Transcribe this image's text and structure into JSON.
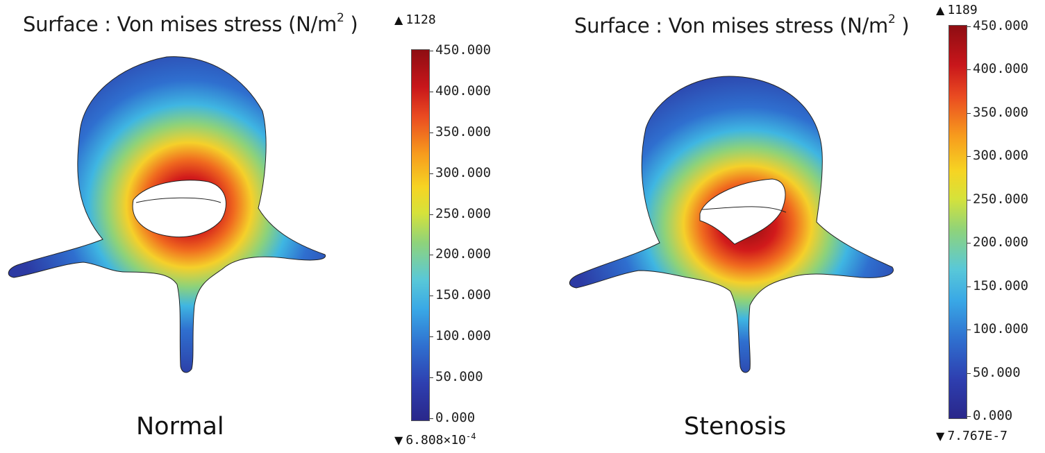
{
  "panels": [
    {
      "title_prefix": "Surface : Von mises stress (N/m",
      "title_sup": "2",
      "title_suffix": " )",
      "label": "Normal",
      "max_value": "1128",
      "min_value": "6.808×10",
      "min_exp": "-4",
      "ticks": [
        "450.000",
        "400.000",
        "350.000",
        "300.000",
        "250.000",
        "200.000",
        "150.000",
        "100.000",
        "50.000",
        "0.000"
      ]
    },
    {
      "title_prefix": "Surface : Von mises stress (N/m",
      "title_sup": "2",
      "title_suffix": " )",
      "label": "Stenosis",
      "max_value": "1189",
      "min_value": "7.767E-7",
      "min_exp": "",
      "ticks": [
        "450.000",
        "400.000",
        "350.000",
        "300.000",
        "250.000",
        "200.000",
        "150.000",
        "100.000",
        "50.000",
        "0.000"
      ]
    }
  ],
  "colors": {
    "low": "#29278a",
    "mid": "#d6e23a",
    "high": "#8e0d12"
  }
}
